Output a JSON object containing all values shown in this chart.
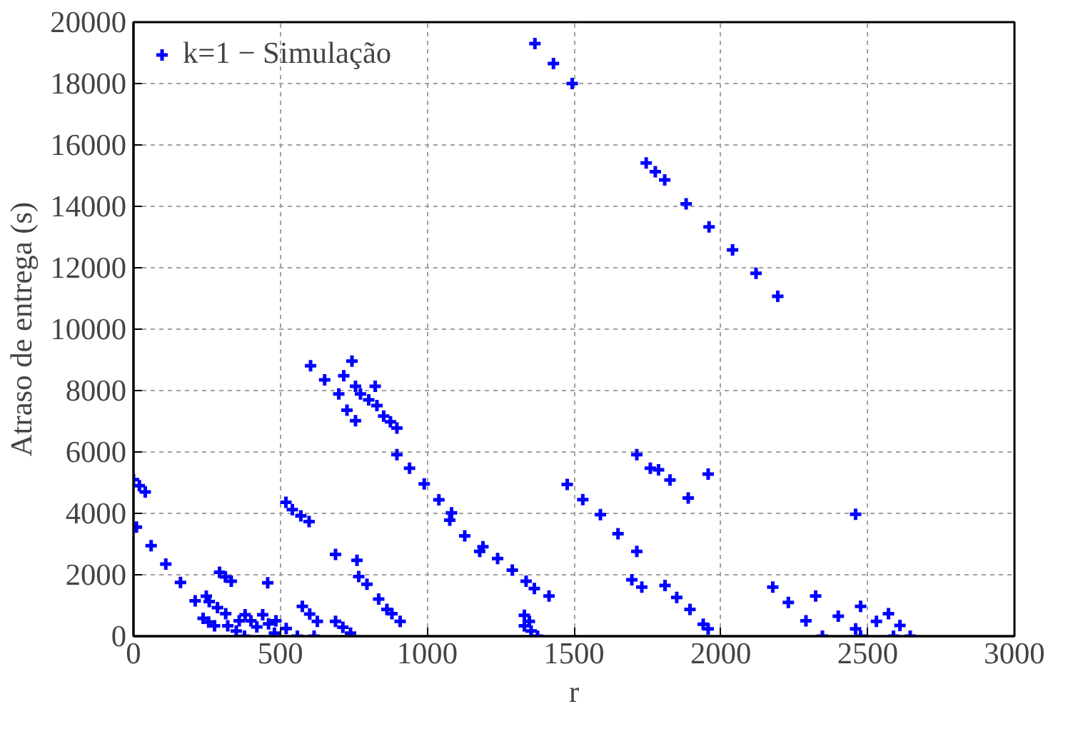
{
  "chart_data": {
    "type": "scatter",
    "xlabel": "r",
    "ylabel": "Atraso de entrega (s)",
    "xlim": [
      0,
      3000
    ],
    "xticks": [
      0,
      500,
      1000,
      1500,
      2000,
      2500,
      3000
    ],
    "ylim": [
      0,
      20000
    ],
    "yticks": [
      0,
      2000,
      4000,
      6000,
      8000,
      10000,
      12000,
      14000,
      16000,
      18000,
      20000
    ],
    "grid": true,
    "legend": "top left",
    "marker": "cross",
    "series": [
      {
        "name": "k=1 − Simulação",
        "color": "#0000ff",
        "x": [
          0,
          20,
          40,
          10,
          60,
          110,
          160,
          210,
          248,
          258,
          286,
          314,
          321,
          350,
          378,
          237,
          256,
          276,
          293,
          313,
          333,
          360,
          380,
          400,
          420,
          440,
          460,
          480,
          457,
          485,
          520,
          558,
          575,
          600,
          626,
          615,
          688,
          713,
          739,
          519,
          541,
          570,
          598,
          603,
          651,
          699,
          716,
          744,
          756,
          823,
          773,
          801,
          829,
          727,
          756,
          852,
          875,
          897,
          897,
          940,
          990,
          1040,
          1083,
          1077,
          1128,
          1179,
          1190,
          1240,
          1290,
          1337,
          1365,
          1415,
          688,
          761,
          767,
          795,
          835,
          863,
          880,
          908,
          1331,
          1348,
          1331,
          1354,
          1376,
          1477,
          1530,
          1590,
          1650,
          1714,
          1714,
          1760,
          1788,
          1827,
          1889,
          1957,
          1697,
          1731,
          1810,
          1850,
          1895,
          1940,
          1957,
          2177,
          2230,
          2290,
          2346,
          2323,
          2400,
          2476,
          2459,
          2476,
          2530,
          2588,
          2571,
          2610,
          2645,
          2459,
          1367,
          1430,
          1494,
          1746,
          1777,
          1809,
          1882,
          1960,
          2040,
          2120,
          2194
        ],
        "values": [
          5100,
          4900,
          4700,
          3550,
          2950,
          2350,
          1750,
          1150,
          1300,
          1130,
          930,
          730,
          340,
          170,
          0,
          580,
          460,
          340,
          2080,
          1930,
          1790,
          500,
          700,
          500,
          300,
          700,
          400,
          100,
          1740,
          500,
          250,
          0,
          970,
          720,
          480,
          0,
          480,
          290,
          100,
          4360,
          4120,
          3920,
          3730,
          8810,
          8350,
          7890,
          8480,
          8960,
          8140,
          8140,
          7890,
          7700,
          7510,
          7360,
          7020,
          7170,
          6980,
          6780,
          5910,
          5470,
          4960,
          4440,
          4020,
          3780,
          3270,
          2760,
          2910,
          2530,
          2150,
          1790,
          1550,
          1310,
          2660,
          2470,
          1940,
          1690,
          1210,
          870,
          730,
          480,
          680,
          480,
          340,
          170,
          0,
          4940,
          4450,
          3960,
          3340,
          2760,
          5910,
          5470,
          5420,
          5090,
          4500,
          5280,
          1840,
          1600,
          1650,
          1260,
          870,
          390,
          240,
          1600,
          1100,
          500,
          0,
          1310,
          650,
          0,
          3970,
          970,
          480,
          0,
          730,
          350,
          0,
          240,
          19300,
          18650,
          18000,
          15410,
          15130,
          14860,
          14080,
          13330,
          12580,
          11820,
          11070
        ]
      }
    ]
  }
}
